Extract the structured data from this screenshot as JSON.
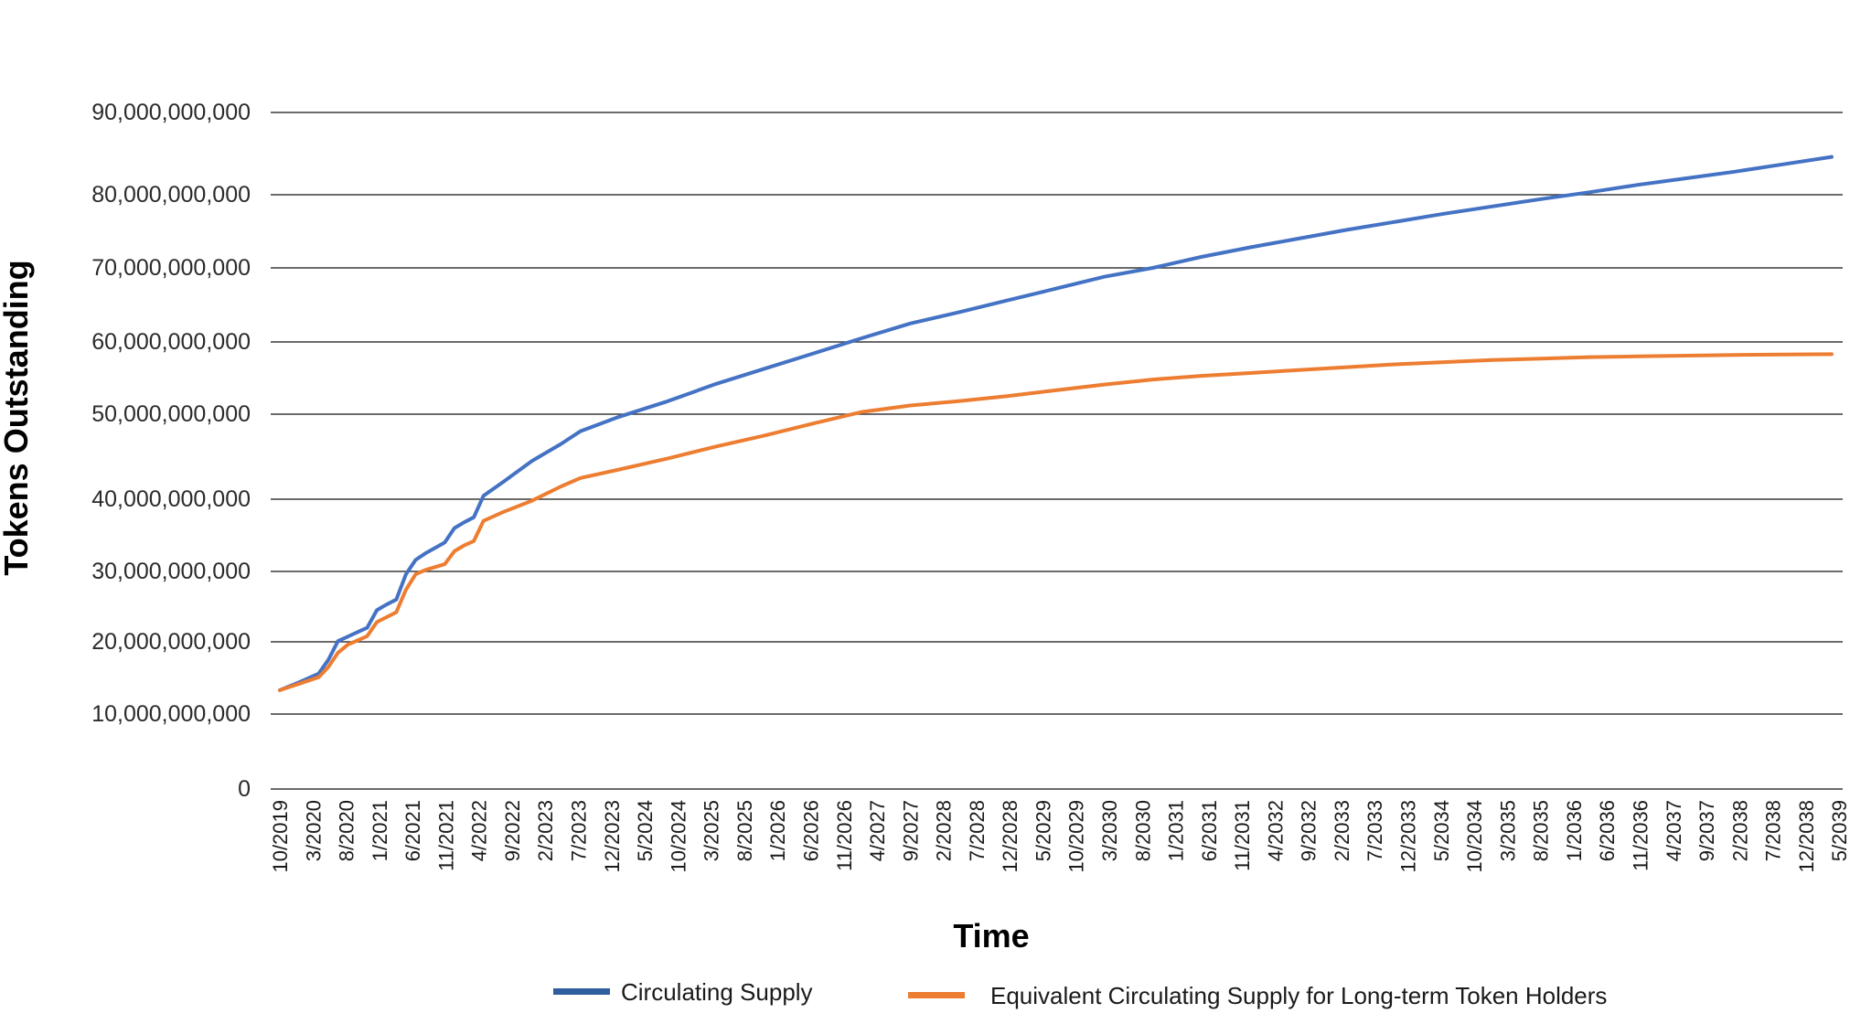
{
  "chart_data": {
    "type": "line",
    "title": "",
    "xlabel": "Time",
    "ylabel": "Tokens Outstanding",
    "ylim": [
      0,
      90000000000
    ],
    "yticks": [
      {
        "value": 0,
        "label": "0"
      },
      {
        "value": 10000000000,
        "label": "10,000,000,000"
      },
      {
        "value": 20000000000,
        "label": "20,000,000,000"
      },
      {
        "value": 30000000000,
        "label": "30,000,000,000"
      },
      {
        "value": 40000000000,
        "label": "40,000,000,000"
      },
      {
        "value": 50000000000,
        "label": "50,000,000,000"
      },
      {
        "value": 60000000000,
        "label": "60,000,000,000"
      },
      {
        "value": 70000000000,
        "label": "70,000,000,000"
      },
      {
        "value": 80000000000,
        "label": "80,000,000,000"
      },
      {
        "value": 90000000000,
        "label": "90,000,000,000"
      }
    ],
    "x_tick_labels": [
      "10/2019",
      "3/2020",
      "8/2020",
      "1/2021",
      "6/2021",
      "11/2021",
      "4/2022",
      "9/2022",
      "2/2023",
      "7/2023",
      "12/2023",
      "5/2024",
      "10/2024",
      "3/2025",
      "8/2025",
      "1/2026",
      "6/2026",
      "11/2026",
      "4/2027",
      "9/2027",
      "2/2028",
      "7/2028",
      "12/2028",
      "5/2029",
      "10/2029",
      "3/2030",
      "8/2030",
      "1/2031",
      "6/2031",
      "11/2031",
      "4/2032",
      "9/2032",
      "2/2033",
      "7/2033",
      "12/2033",
      "5/2034",
      "10/2034",
      "3/2035",
      "8/2035",
      "1/2036",
      "6/2036",
      "11/2036",
      "4/2037",
      "9/2037",
      "2/2038",
      "7/2038",
      "12/2038",
      "5/2039"
    ],
    "x_count": 50,
    "grid": true,
    "legend_position": "bottom",
    "series": [
      {
        "name": "Circulating Supply",
        "color": "#4472C4",
        "points": [
          [
            0,
            13300000000
          ],
          [
            2,
            14400000000
          ],
          [
            4,
            15600000000
          ],
          [
            5,
            17500000000
          ],
          [
            6,
            20100000000
          ],
          [
            9,
            22000000000
          ],
          [
            10,
            24500000000
          ],
          [
            11,
            25300000000
          ],
          [
            12,
            26000000000
          ],
          [
            13,
            29600000000
          ],
          [
            14,
            31600000000
          ],
          [
            15,
            32500000000
          ],
          [
            17,
            34000000000
          ],
          [
            18,
            36000000000
          ],
          [
            19,
            36800000000
          ],
          [
            20,
            37500000000
          ],
          [
            21,
            40400000000
          ],
          [
            23,
            42000000000
          ],
          [
            26,
            44500000000
          ],
          [
            29,
            46500000000
          ],
          [
            31,
            48000000000
          ],
          [
            35,
            49700000000
          ],
          [
            40,
            51800000000
          ],
          [
            45,
            54200000000
          ],
          [
            50,
            56300000000
          ],
          [
            55,
            58400000000
          ],
          [
            60,
            60500000000
          ],
          [
            65,
            62500000000
          ],
          [
            70,
            64000000000
          ],
          [
            75,
            65600000000
          ],
          [
            80,
            67200000000
          ],
          [
            85,
            68800000000
          ],
          [
            90,
            70000000000
          ],
          [
            95,
            71500000000
          ],
          [
            100,
            72800000000
          ],
          [
            105,
            74000000000
          ],
          [
            110,
            75200000000
          ],
          [
            115,
            76300000000
          ],
          [
            120,
            77400000000
          ],
          [
            125,
            78400000000
          ],
          [
            130,
            79400000000
          ],
          [
            135,
            80300000000
          ],
          [
            140,
            81200000000
          ],
          [
            145,
            82000000000
          ],
          [
            150,
            82800000000
          ],
          [
            155,
            83700000000
          ],
          [
            160,
            84600000000
          ]
        ]
      },
      {
        "name": "Equivalent Circulating Supply for Long-term Token Holders",
        "color": "#ED7D31",
        "points": [
          [
            0,
            13300000000
          ],
          [
            2,
            14200000000
          ],
          [
            4,
            15100000000
          ],
          [
            5,
            16500000000
          ],
          [
            6,
            18500000000
          ],
          [
            7,
            19600000000
          ],
          [
            9,
            20800000000
          ],
          [
            10,
            22800000000
          ],
          [
            11,
            23500000000
          ],
          [
            12,
            24200000000
          ],
          [
            13,
            27400000000
          ],
          [
            14,
            29600000000
          ],
          [
            15,
            30200000000
          ],
          [
            17,
            31000000000
          ],
          [
            18,
            32800000000
          ],
          [
            19,
            33600000000
          ],
          [
            20,
            34200000000
          ],
          [
            21,
            37000000000
          ],
          [
            23,
            38200000000
          ],
          [
            26,
            39800000000
          ],
          [
            29,
            41500000000
          ],
          [
            31,
            42500000000
          ],
          [
            35,
            43500000000
          ],
          [
            40,
            44800000000
          ],
          [
            45,
            46200000000
          ],
          [
            50,
            47500000000
          ],
          [
            55,
            48900000000
          ],
          [
            60,
            50300000000
          ],
          [
            65,
            51200000000
          ],
          [
            70,
            51800000000
          ],
          [
            75,
            52500000000
          ],
          [
            80,
            53300000000
          ],
          [
            85,
            54100000000
          ],
          [
            90,
            54800000000
          ],
          [
            95,
            55300000000
          ],
          [
            100,
            55700000000
          ],
          [
            105,
            56100000000
          ],
          [
            110,
            56500000000
          ],
          [
            115,
            56900000000
          ],
          [
            120,
            57200000000
          ],
          [
            125,
            57500000000
          ],
          [
            130,
            57700000000
          ],
          [
            135,
            57900000000
          ],
          [
            140,
            58000000000
          ],
          [
            145,
            58100000000
          ],
          [
            150,
            58200000000
          ],
          [
            155,
            58250000000
          ],
          [
            160,
            58300000000
          ]
        ]
      }
    ]
  }
}
